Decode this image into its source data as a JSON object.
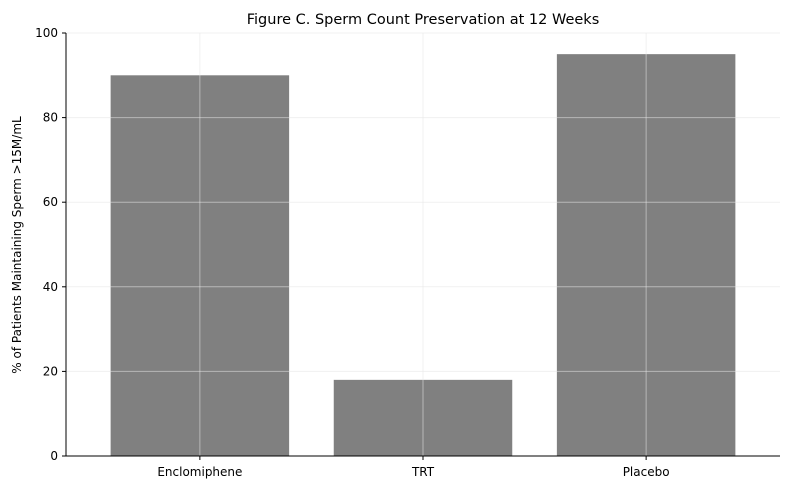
{
  "chart_data": {
    "type": "bar",
    "title": "Figure C. Sperm Count Preservation at 12 Weeks",
    "xlabel": "",
    "ylabel": "% of Patients Maintaining Sperm >15M/mL",
    "categories": [
      "Enclomiphene",
      "TRT",
      "Placebo"
    ],
    "values": [
      90,
      18,
      95
    ],
    "ylim": [
      0,
      100
    ],
    "yticks": [
      0,
      20,
      40,
      60,
      80,
      100
    ],
    "grid": true,
    "bar_color": "#808080",
    "grid_color": "#e6e6e6"
  }
}
